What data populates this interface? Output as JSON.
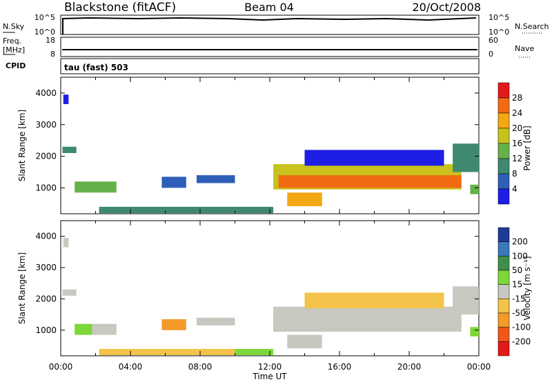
{
  "header": {
    "title": "Blackstone (fitACF)",
    "beam": "Beam 04",
    "date": "20/Oct/2008"
  },
  "noise_panel": {
    "left_label": "N.Sky",
    "left_ticks": [
      "10^5",
      "10^0"
    ],
    "right_label": "N.Search",
    "right_ticks": [
      "10^5",
      "10^0"
    ]
  },
  "freq_panel": {
    "left_label_1": "Freq.",
    "left_label_2": "[MHz]",
    "left_ticks": [
      "18",
      "8"
    ],
    "right_label": "Nave",
    "right_ticks": [
      "60",
      "0"
    ],
    "cpid_label": "CPID",
    "cpid_text": "tau (fast) 503"
  },
  "time_ticks": [
    "00:00",
    "04:00",
    "08:00",
    "12:00",
    "16:00",
    "20:00",
    "00:00"
  ],
  "x_axis_title": "Time UT",
  "range_ticks": [
    "1000",
    "2000",
    "3000",
    "4000"
  ],
  "range_axis_title": "Slant Range [km]",
  "power_colorbar": {
    "title": "Power [dB]",
    "labels": [
      "4",
      "8",
      "12",
      "16",
      "20",
      "24",
      "28"
    ],
    "colors": [
      "#1e1ee6",
      "#2e5fb8",
      "#3f8a6e",
      "#66b24a",
      "#c9c21c",
      "#f2a713",
      "#f26a12",
      "#e31a1c"
    ]
  },
  "velocity_colorbar": {
    "title": "Velocity [m s⁻¹]",
    "labels": [
      "200",
      "100",
      "50",
      "15",
      "-15",
      "-50",
      "-100",
      "-200"
    ],
    "colors": [
      "#1e3a9a",
      "#3a78b8",
      "#3f8f4a",
      "#7dd63a",
      "#c8c8c0",
      "#f3c34a",
      "#f39a2a",
      "#f0581a",
      "#e31a1c"
    ]
  },
  "chart_data": [
    {
      "type": "line",
      "title": "N.Sky / N.Search",
      "x": [
        0,
        4,
        8,
        12,
        16,
        20,
        24
      ],
      "series": [
        {
          "name": "N.Sky",
          "values": [
            5,
            5,
            5,
            5,
            5,
            5,
            5
          ]
        }
      ],
      "xlim": [
        0,
        24
      ],
      "ylim": [
        0,
        5
      ],
      "y_scale": "log"
    },
    {
      "type": "line",
      "title": "Freq. / Nave",
      "x": [
        0,
        4,
        8,
        12,
        16,
        20,
        24
      ],
      "series": [
        {
          "name": "Freq.",
          "values": [
            11,
            11,
            11,
            11,
            11,
            11,
            11
          ]
        }
      ],
      "xlim": [
        0,
        24
      ],
      "ylim": [
        8,
        18
      ]
    },
    {
      "type": "heatmap",
      "quantity": "Power",
      "x_unit": "hours UT",
      "xlim": [
        0,
        24
      ],
      "ylim": [
        180,
        4500
      ],
      "regions": [
        {
          "t0": 0.1,
          "t1": 0.9,
          "r0": 2100,
          "r1": 2300,
          "level": 2
        },
        {
          "t0": 0.15,
          "t1": 0.45,
          "r0": 3650,
          "r1": 3950,
          "level": 0
        },
        {
          "t0": 0.8,
          "t1": 3.2,
          "r0": 850,
          "r1": 1200,
          "level": 3
        },
        {
          "t0": 5.8,
          "t1": 7.2,
          "r0": 1000,
          "r1": 1350,
          "level": 1
        },
        {
          "t0": 7.8,
          "t1": 10.0,
          "r0": 1150,
          "r1": 1400,
          "level": 1
        },
        {
          "t0": 2.2,
          "t1": 12.2,
          "r0": 200,
          "r1": 400,
          "level": 2
        },
        {
          "t0": 12.2,
          "t1": 23.0,
          "r0": 950,
          "r1": 1750,
          "level": 4
        },
        {
          "t0": 12.5,
          "t1": 23.0,
          "r0": 1000,
          "r1": 1400,
          "level": 6
        },
        {
          "t0": 13.0,
          "t1": 15.0,
          "r0": 420,
          "r1": 850,
          "level": 5
        },
        {
          "t0": 14.0,
          "t1": 22.0,
          "r0": 1700,
          "r1": 2200,
          "level": 0
        },
        {
          "t0": 22.5,
          "t1": 24.0,
          "r0": 1500,
          "r1": 2400,
          "level": 2
        },
        {
          "t0": 23.5,
          "t1": 24.0,
          "r0": 800,
          "r1": 1100,
          "level": 3
        }
      ]
    },
    {
      "type": "heatmap",
      "quantity": "Velocity",
      "x_unit": "hours UT",
      "xlim": [
        0,
        24
      ],
      "ylim": [
        180,
        4500
      ],
      "regions": [
        {
          "t0": 0.1,
          "t1": 0.9,
          "r0": 2100,
          "r1": 2300,
          "level": 4
        },
        {
          "t0": 0.15,
          "t1": 0.45,
          "r0": 3650,
          "r1": 3950,
          "level": 4
        },
        {
          "t0": 0.8,
          "t1": 1.8,
          "r0": 850,
          "r1": 1200,
          "level": 3
        },
        {
          "t0": 1.8,
          "t1": 3.2,
          "r0": 850,
          "r1": 1200,
          "level": 4
        },
        {
          "t0": 5.8,
          "t1": 7.2,
          "r0": 1000,
          "r1": 1350,
          "level": 6
        },
        {
          "t0": 7.8,
          "t1": 10.0,
          "r0": 1150,
          "r1": 1400,
          "level": 4
        },
        {
          "t0": 2.2,
          "t1": 10.0,
          "r0": 200,
          "r1": 400,
          "level": 5
        },
        {
          "t0": 10.0,
          "t1": 12.2,
          "r0": 200,
          "r1": 400,
          "level": 3
        },
        {
          "t0": 12.2,
          "t1": 23.0,
          "r0": 950,
          "r1": 1750,
          "level": 4
        },
        {
          "t0": 13.0,
          "t1": 15.0,
          "r0": 420,
          "r1": 850,
          "level": 4
        },
        {
          "t0": 14.0,
          "t1": 22.0,
          "r0": 1700,
          "r1": 2200,
          "level": 5
        },
        {
          "t0": 22.5,
          "t1": 24.0,
          "r0": 1500,
          "r1": 2400,
          "level": 4
        },
        {
          "t0": 23.5,
          "t1": 24.0,
          "r0": 800,
          "r1": 1100,
          "level": 3
        }
      ]
    }
  ]
}
